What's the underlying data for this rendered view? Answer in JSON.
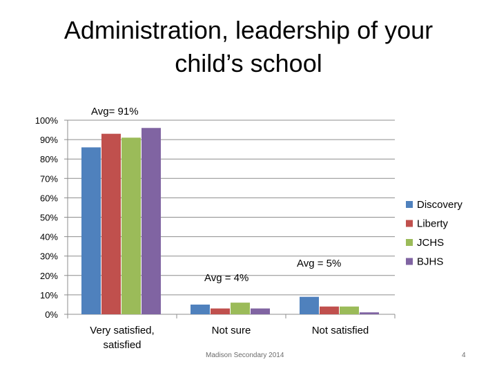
{
  "slide": {
    "title": "Administration, leadership of your child’s school",
    "footer": "Madison Secondary 2014",
    "page_number": "4"
  },
  "chart_data": {
    "type": "bar",
    "categories": [
      "Very satisfied,\nsatisfied",
      "Not sure",
      "Not satisfied"
    ],
    "series": [
      {
        "name": "Discovery",
        "color": "#4f81bd",
        "values": [
          86,
          5,
          9
        ]
      },
      {
        "name": "Liberty",
        "color": "#c0504d",
        "values": [
          93,
          3,
          4
        ]
      },
      {
        "name": "JCHS",
        "color": "#9bbb59",
        "values": [
          91,
          6,
          4
        ]
      },
      {
        "name": "BJHS",
        "color": "#8064a2",
        "values": [
          96,
          3,
          1
        ]
      }
    ],
    "yticks": [
      "0%",
      "10%",
      "20%",
      "30%",
      "40%",
      "50%",
      "60%",
      "70%",
      "80%",
      "90%",
      "100%"
    ],
    "ylim": [
      0,
      100
    ],
    "grid": true,
    "legend_position": "right",
    "annotations": [
      {
        "text": "Avg= 91%",
        "category_index": 0
      },
      {
        "text": "Avg = 4%",
        "category_index": 1
      },
      {
        "text": "Avg = 5%",
        "category_index": 2
      }
    ]
  }
}
